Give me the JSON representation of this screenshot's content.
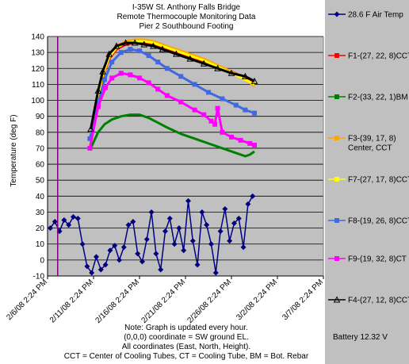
{
  "chart_data": {
    "type": "line",
    "title": [
      "I-35W St. Anthony Falls Bridge",
      "Remote Thermocouple Monitoring Data",
      "Pier 2 Southbound Footing"
    ],
    "ylabel": "Temperature (deg F)",
    "xlabel": "",
    "x_unit": "days after 2/6/08 2:24 PM",
    "ylim": [
      -10,
      140
    ],
    "xlim": [
      0,
      30
    ],
    "yticks": [
      -10,
      0,
      10,
      20,
      30,
      40,
      50,
      60,
      70,
      80,
      90,
      100,
      110,
      120,
      130,
      140
    ],
    "xtick_labels": [
      "2/6/08 2:24 PM",
      "2/11/08 2:24 PM",
      "2/16/08 2:24 PM",
      "2/21/08 2:24 PM",
      "2/26/08 2:24 PM",
      "3/2/08 2:24 PM",
      "3/7/08 2:24 PM"
    ],
    "xtick_values": [
      0,
      5,
      10,
      15,
      20,
      25,
      30
    ],
    "grid": "horizontal",
    "legend_position": "right",
    "vertical_marker": {
      "x": 1.1,
      "color": "#800080"
    },
    "notes": [
      "Note: Graph is updated every hour.",
      "(0,0,0) coordinate = SW ground EL.",
      "All coordinates (East, North, Height).",
      "CCT = Center of Cooling Tubes, CT = Cooling Tube, BM = Bot. Rebar"
    ],
    "battery": "Battery 12.32 V",
    "series": [
      {
        "name": "28.6 F Air Temp",
        "color": "#000080",
        "marker": "diamond",
        "x": [
          0.3,
          0.8,
          1.3,
          1.8,
          2.3,
          2.8,
          3.3,
          3.8,
          4.3,
          4.8,
          5.3,
          5.8,
          6.3,
          6.8,
          7.3,
          7.8,
          8.3,
          8.8,
          9.3,
          9.8,
          10.3,
          10.8,
          11.3,
          11.8,
          12.3,
          12.8,
          13.3,
          13.8,
          14.3,
          14.8,
          15.3,
          15.8,
          16.3,
          16.8,
          17.3,
          17.8,
          18.3,
          18.8,
          19.3,
          19.8,
          20.3,
          20.8,
          21.3,
          21.8,
          22.3
        ],
        "y": [
          20,
          24,
          18,
          25,
          22,
          27,
          26,
          10,
          -4,
          -8,
          2,
          -6,
          -3,
          6,
          9,
          0,
          8,
          22,
          24,
          4,
          -1,
          13,
          30,
          4,
          -6,
          18,
          26,
          10,
          20,
          6,
          37,
          12,
          -3,
          30,
          22,
          10,
          -8,
          18,
          32,
          12,
          23,
          26,
          8,
          35,
          40
        ]
      },
      {
        "name": "F1-(27, 22, 8)CCT",
        "color": "#ff0000",
        "marker": "",
        "x": [
          4.7,
          5.5,
          6.0,
          6.7,
          7.5,
          8.5,
          9.5,
          10.5,
          11.5,
          12.5,
          14,
          15.5,
          17,
          18.5,
          20,
          21.5,
          22.5
        ],
        "y": [
          78,
          102,
          115,
          126,
          132,
          135,
          136,
          136,
          135,
          133,
          130,
          127,
          124,
          121,
          118,
          114,
          110
        ]
      },
      {
        "name": "F2-(33, 22, 1)BM",
        "color": "#008000",
        "marker": "",
        "x": [
          4.7,
          5.5,
          6.2,
          7,
          8,
          9,
          10,
          11,
          12,
          13,
          14.5,
          16,
          17.5,
          19,
          20.5,
          21.5,
          22,
          22.5
        ],
        "y": [
          70,
          80,
          85,
          88,
          90,
          91,
          91,
          89,
          86,
          83,
          79,
          76,
          73,
          70,
          67,
          65,
          66,
          68
        ]
      },
      {
        "name": "F3-(39, 17, 8) Center, CCT",
        "color": "#ffa500",
        "marker": "",
        "x": [
          4.7,
          5.5,
          6.0,
          6.7,
          7.5,
          8.5,
          9.5,
          10.5,
          11.5,
          12.5,
          14,
          15.5,
          17,
          18.5,
          20,
          21.5,
          22.5
        ],
        "y": [
          80,
          104,
          117,
          128,
          134,
          137,
          138,
          138,
          137,
          135,
          132,
          129,
          126,
          122,
          118,
          113,
          109
        ]
      },
      {
        "name": "F7-(27, 17, 8)CCT",
        "color": "#ffff00",
        "marker": "",
        "x": [
          4.7,
          5.5,
          6.0,
          6.7,
          7.5,
          8.5,
          9.5,
          10.5,
          11.5,
          12.5,
          14,
          15.5,
          17,
          18.5,
          20,
          21.5,
          22.5
        ],
        "y": [
          79,
          103,
          116,
          127,
          133,
          136,
          137,
          137,
          136,
          134,
          131,
          128,
          125,
          121,
          117,
          113,
          110
        ]
      },
      {
        "name": "F8-(19, 26, 8)CCT",
        "color": "#4169e1",
        "marker": "square",
        "x": [
          4.6,
          5.5,
          6.2,
          7,
          8,
          9,
          10,
          11,
          12,
          13,
          14.5,
          16,
          17.5,
          19,
          20.5,
          21.5,
          22.5
        ],
        "y": [
          76,
          98,
          113,
          124,
          130,
          132,
          131,
          128,
          124,
          120,
          115,
          110,
          105,
          101,
          97,
          94,
          92
        ]
      },
      {
        "name": "F9-(19, 32, 8)CT",
        "color": "#ff00ff",
        "marker": "square",
        "x": [
          4.6,
          5.5,
          6.3,
          7,
          8,
          9,
          10,
          11,
          12,
          13,
          14.5,
          16,
          17,
          17.8,
          18.2,
          18.5,
          19,
          20,
          21,
          22,
          22.5
        ],
        "y": [
          70,
          96,
          108,
          114,
          117,
          116,
          114,
          111,
          107,
          103,
          99,
          94,
          91,
          87,
          85,
          95,
          80,
          77,
          75,
          73,
          72
        ]
      },
      {
        "name": "F4-(27, 12, 8)CCT",
        "color": "#000000",
        "marker": "triangle",
        "x": [
          4.7,
          5.5,
          6.0,
          6.7,
          7.5,
          8.5,
          9.5,
          10.5,
          11.5,
          12.5,
          14,
          15.5,
          17,
          18.5,
          20,
          21.5,
          22.5
        ],
        "y": [
          82,
          106,
          118,
          129,
          134,
          136,
          136,
          135,
          134,
          132,
          129,
          126,
          123,
          120,
          117,
          115,
          112
        ]
      }
    ]
  }
}
